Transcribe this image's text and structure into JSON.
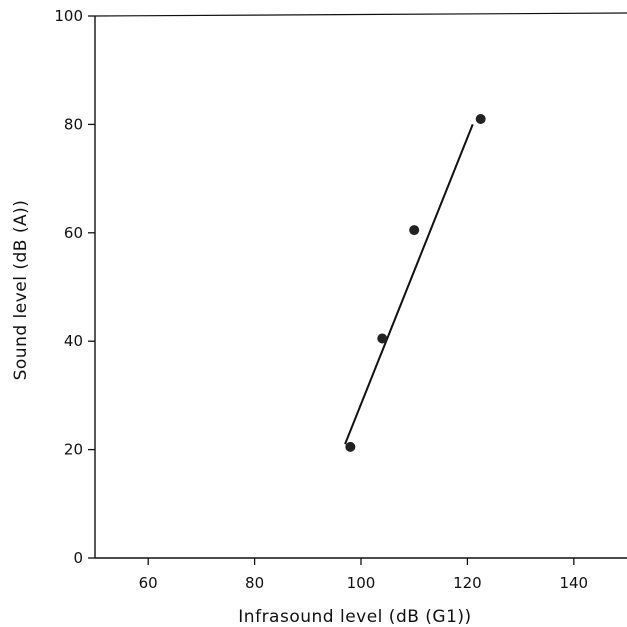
{
  "chart_data": {
    "type": "scatter",
    "title": "",
    "xlabel": "Infrasound level (dB (G1))",
    "ylabel": "Sound level (dB (A))",
    "xlim": [
      50,
      150
    ],
    "ylim": [
      0,
      100
    ],
    "x_ticks": [
      60,
      80,
      100,
      120,
      140
    ],
    "y_ticks": [
      0,
      20,
      40,
      60,
      80,
      100
    ],
    "grid": false,
    "legend": "none",
    "colors": {
      "axis": "#111111",
      "points": "#222222",
      "line": "#111111"
    },
    "points": [
      {
        "x": 98,
        "y": 20.5
      },
      {
        "x": 104,
        "y": 40.5
      },
      {
        "x": 110,
        "y": 60.5
      },
      {
        "x": 122.5,
        "y": 81
      }
    ],
    "fit_line": {
      "x": [
        97,
        121
      ],
      "y": [
        21,
        80
      ]
    }
  }
}
